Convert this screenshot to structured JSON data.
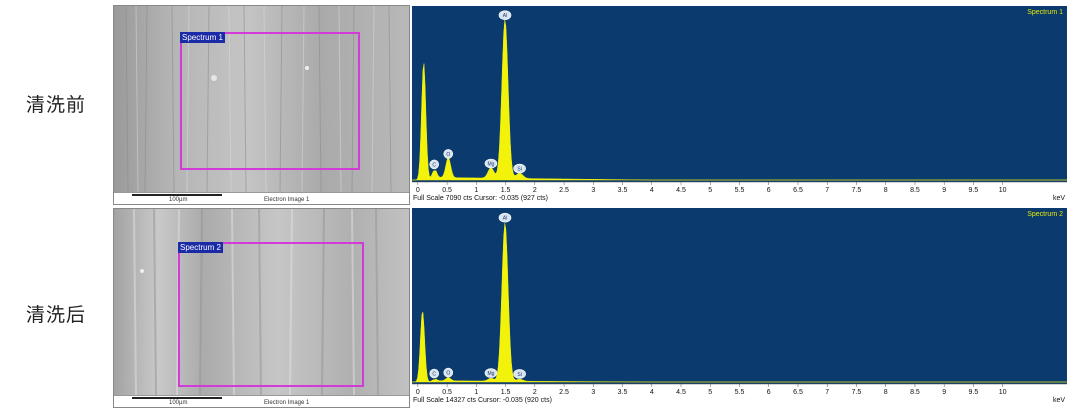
{
  "rows": [
    {
      "label": "清洗前",
      "sem": {
        "scale_label": "100µm",
        "image_label": "Electron Image 1",
        "spectrum_tag": "Spectrum 1"
      },
      "chart": {
        "title": "Spectrum 1",
        "footer": "Full Scale 7090 cts Cursor: -0.035  (927 cts)"
      }
    },
    {
      "label": "清洗后",
      "sem": {
        "scale_label": "100µm",
        "image_label": "Electron Image 1",
        "spectrum_tag": "Spectrum 2"
      },
      "chart": {
        "title": "Spectrum 2",
        "footer": "Full Scale 14327 cts Cursor: -0.035  (920 cts)"
      }
    }
  ],
  "colors": {
    "plot_bg": "#0a3a6e",
    "peak_fill": "#f2f20a",
    "spectrum_title": "#e8e800",
    "frame": "#d23cd6"
  },
  "chart_data": [
    {
      "type": "area",
      "title": "Spectrum 1",
      "xlabel": "keV",
      "xlim": [
        -0.1,
        11.1
      ],
      "ylim": [
        0,
        7090
      ],
      "x_ticks": [
        "0",
        "0.5",
        "1",
        "1.5",
        "2",
        "2.5",
        "3",
        "3.5",
        "4",
        "4.5",
        "5",
        "5.5",
        "6",
        "6.5",
        "7",
        "7.5",
        "8",
        "8.5",
        "9",
        "9.5",
        "10"
      ],
      "peaks": [
        {
          "x": 0.1,
          "y": 5150,
          "label": ""
        },
        {
          "x": 0.28,
          "y": 420,
          "label": "C"
        },
        {
          "x": 0.52,
          "y": 880,
          "label": "O"
        },
        {
          "x": 1.25,
          "y": 460,
          "label": "Mg"
        },
        {
          "x": 1.49,
          "y": 6950,
          "label": "Al"
        },
        {
          "x": 1.74,
          "y": 240,
          "label": "Si"
        }
      ]
    },
    {
      "type": "area",
      "title": "Spectrum 2",
      "xlabel": "keV",
      "xlim": [
        -0.1,
        11.1
      ],
      "ylim": [
        0,
        14327
      ],
      "x_ticks": [
        "0",
        "0.5",
        "1",
        "1.5",
        "2",
        "2.5",
        "3",
        "3.5",
        "4",
        "4.5",
        "5",
        "5.5",
        "6",
        "6.5",
        "7",
        "7.5",
        "8",
        "8.5",
        "9",
        "9.5",
        "10"
      ],
      "peaks": [
        {
          "x": 0.08,
          "y": 6300,
          "label": ""
        },
        {
          "x": 0.28,
          "y": 220,
          "label": "C"
        },
        {
          "x": 0.52,
          "y": 300,
          "label": "O"
        },
        {
          "x": 1.25,
          "y": 260,
          "label": "Mg"
        },
        {
          "x": 1.49,
          "y": 14000,
          "label": "Al"
        },
        {
          "x": 1.74,
          "y": 180,
          "label": "Si"
        }
      ]
    }
  ]
}
